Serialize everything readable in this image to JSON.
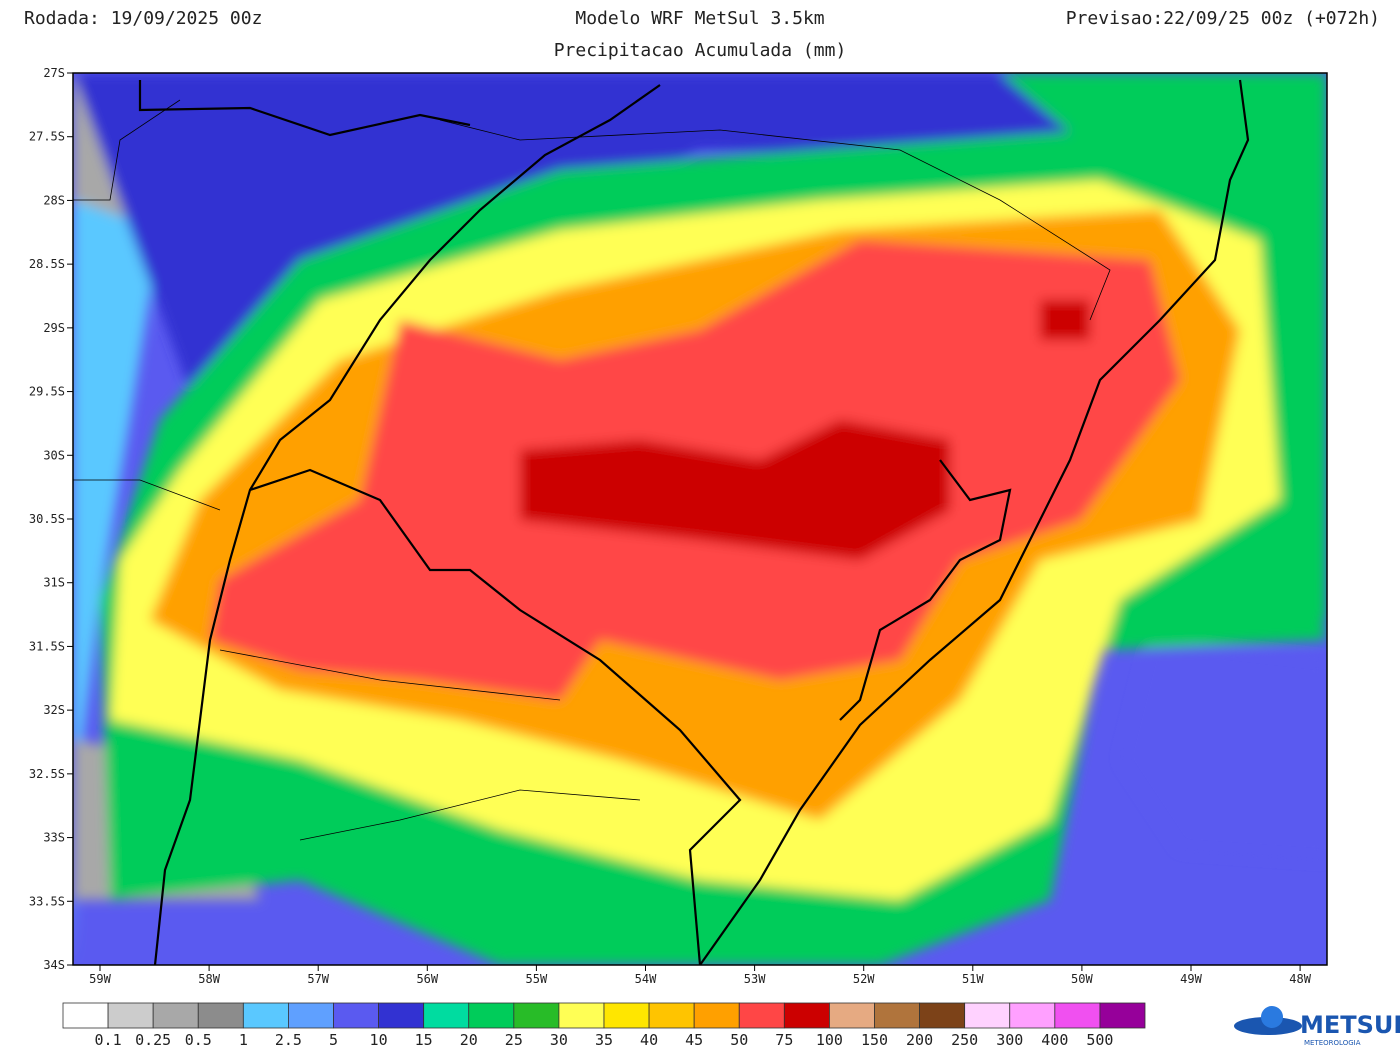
{
  "header": {
    "run": "Rodada: 19/09/2025 00z",
    "title": "Modelo WRF MetSul 3.5km",
    "valid": "Previsao:22/09/25 00z (+072h)",
    "subtitle": "Precipitacao Acumulada (mm)"
  },
  "map": {
    "lat_labels": [
      "27S",
      "27.5S",
      "28S",
      "28.5S",
      "29S",
      "29.5S",
      "30S",
      "30.5S",
      "31S",
      "31.5S",
      "32S",
      "32.5S",
      "33S",
      "33.5S",
      "34S"
    ],
    "lon_labels": [
      "59W",
      "58W",
      "57W",
      "56W",
      "55W",
      "54W",
      "53W",
      "52W",
      "51W",
      "50W",
      "49W",
      "48W"
    ]
  },
  "colorbar": {
    "colors": [
      "#ffffff",
      "#cccccc",
      "#a8a8a8",
      "#8c8c8c",
      "#5ac8ff",
      "#5fa0ff",
      "#5a5af0",
      "#3232d2",
      "#00dca0",
      "#00cc5a",
      "#28bc28",
      "#ffff55",
      "#ffe600",
      "#ffc400",
      "#ffa000",
      "#ff4646",
      "#cc0000",
      "#e6aa82",
      "#b0743c",
      "#7c4218",
      "#ffd2ff",
      "#ffa0ff",
      "#f050f0",
      "#96009a"
    ],
    "labels": [
      "0.1",
      "0.25",
      "0.5",
      "1",
      "2.5",
      "5",
      "10",
      "15",
      "20",
      "25",
      "30",
      "35",
      "40",
      "45",
      "50",
      "75",
      "100",
      "150",
      "200",
      "250",
      "300",
      "400",
      "500"
    ]
  },
  "logo": {
    "name": "METSUL",
    "tagline": "METEOROLOGIA"
  }
}
